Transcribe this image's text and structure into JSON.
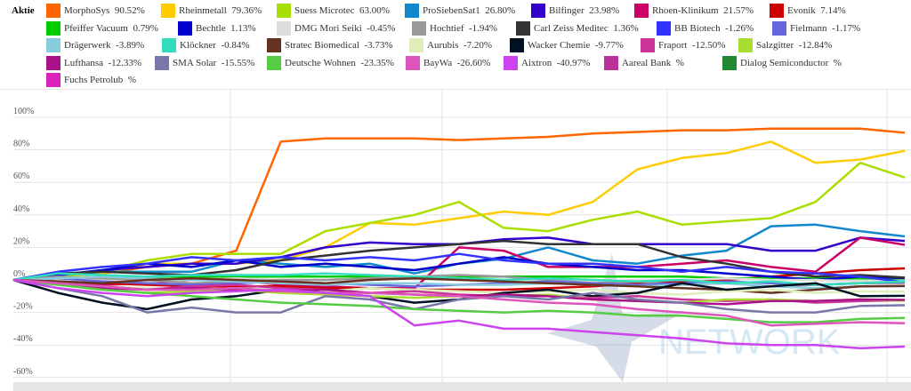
{
  "legend_title": "Aktie",
  "watermark": "NETWORK",
  "chart_data": {
    "type": "line",
    "ylim": [
      -62,
      110
    ],
    "yticks": [
      "100%",
      "80%",
      "60%",
      "40%",
      "20%",
      "0%",
      "-20%",
      "-40%",
      "-60%"
    ],
    "ytick_values": [
      100,
      80,
      60,
      40,
      20,
      0,
      -20,
      -40,
      -60
    ],
    "grid": true,
    "legend_placement": "top",
    "series": [
      {
        "name": "MorphoSys",
        "label": "90.52%",
        "color": "#ff6600",
        "values": [
          0,
          2,
          4,
          8,
          10,
          18,
          85,
          87,
          87,
          87,
          86,
          87,
          88,
          90,
          91,
          92,
          92,
          93,
          93,
          93,
          90.5
        ]
      },
      {
        "name": "Rheinmetall",
        "label": "79.36%",
        "color": "#ffcc00",
        "values": [
          0,
          2,
          4,
          10,
          10,
          10,
          12,
          20,
          35,
          34,
          38,
          42,
          40,
          48,
          68,
          75,
          78,
          85,
          72,
          74,
          79.4
        ]
      },
      {
        "name": "Suess Microtec",
        "label": "63.00%",
        "color": "#aadd00",
        "values": [
          0,
          2,
          5,
          12,
          16,
          16,
          16,
          30,
          35,
          40,
          48,
          32,
          30,
          37,
          42,
          34,
          36,
          38,
          48,
          72,
          63
        ]
      },
      {
        "name": "ProSiebenSat1",
        "label": "26.80%",
        "color": "#1188cc",
        "values": [
          0,
          3,
          5,
          5,
          5,
          12,
          10,
          8,
          10,
          4,
          10,
          13,
          20,
          12,
          10,
          15,
          18,
          33,
          34,
          30,
          26.8
        ]
      },
      {
        "name": "Bilfinger",
        "label": "23.98%",
        "color": "#3300cc",
        "values": [
          0,
          3,
          6,
          8,
          10,
          10,
          14,
          20,
          23,
          22,
          22,
          25,
          26,
          22,
          22,
          22,
          22,
          18,
          18,
          26,
          24
        ]
      },
      {
        "name": "Rhoen-Klinikum",
        "label": "21.57%",
        "color": "#cc0066",
        "values": [
          0,
          -2,
          -3,
          -2,
          0,
          0,
          -3,
          -4,
          -5,
          -5,
          20,
          18,
          8,
          8,
          8,
          10,
          12,
          8,
          5,
          26,
          21.6
        ]
      },
      {
        "name": "Evonik",
        "label": "7.14%",
        "color": "#cc0000",
        "values": [
          0,
          -1,
          -2,
          -3,
          -4,
          -4,
          -4,
          -5,
          -5,
          -6,
          -6,
          -6,
          -5,
          -4,
          -2,
          -1,
          0,
          2,
          4,
          6,
          7.1
        ]
      },
      {
        "name": "Pfeiffer Vacuum",
        "label": "0.79%",
        "color": "#00cc00",
        "values": [
          0,
          1,
          2,
          2,
          2,
          2,
          2,
          2,
          2,
          2,
          2,
          2,
          2,
          2,
          2,
          2,
          1,
          1,
          1,
          1,
          0.8
        ]
      },
      {
        "name": "Bechtle",
        "label": "1.13%",
        "color": "#0000cc",
        "values": [
          0,
          3,
          6,
          10,
          8,
          12,
          8,
          10,
          8,
          6,
          10,
          14,
          10,
          8,
          6,
          6,
          4,
          2,
          0,
          2,
          1.1
        ]
      },
      {
        "name": "DMG Mori Seiki",
        "label": "-0.45%",
        "color": "#dddddd",
        "values": [
          0,
          1,
          0,
          -1,
          0,
          1,
          0,
          0,
          1,
          2,
          1,
          0,
          0,
          -1,
          0,
          0,
          1,
          0,
          0,
          -1,
          -0.45
        ]
      },
      {
        "name": "Hochtief",
        "label": "-1.94%",
        "color": "#999999",
        "values": [
          0,
          2,
          1,
          0,
          -2,
          -1,
          0,
          0,
          1,
          2,
          3,
          2,
          0,
          -2,
          -1,
          -3,
          -2,
          -4,
          -3,
          -2,
          -1.9
        ]
      },
      {
        "name": "Carl Zeiss Meditec",
        "label": "1.36%",
        "color": "#333333",
        "values": [
          0,
          4,
          5,
          4,
          3,
          6,
          12,
          15,
          18,
          20,
          22,
          24,
          22,
          22,
          22,
          14,
          10,
          5,
          2,
          3,
          1.4
        ]
      },
      {
        "name": "BB Biotech",
        "label": "-1.26%",
        "color": "#3333ff",
        "values": [
          0,
          5,
          8,
          10,
          14,
          12,
          14,
          12,
          14,
          12,
          16,
          12,
          10,
          10,
          8,
          5,
          8,
          5,
          4,
          2,
          -1.3
        ]
      },
      {
        "name": "Fielmann",
        "label": "-1.17%",
        "color": "#6666dd",
        "values": [
          0,
          1,
          -1,
          -2,
          -3,
          -2,
          -1,
          -2,
          -3,
          -4,
          -3,
          -2,
          -1,
          -2,
          -3,
          -2,
          -1,
          -2,
          -3,
          -2,
          -1.2
        ]
      },
      {
        "name": "Drägerwerk",
        "label": "-3.89%",
        "color": "#88ccdd",
        "values": [
          0,
          1,
          2,
          1,
          0,
          -1,
          -2,
          -3,
          -2,
          -2,
          -3,
          -3,
          -2,
          -3,
          -4,
          -3,
          -2,
          -4,
          -5,
          -4,
          -3.9
        ]
      },
      {
        "name": "Klöckner",
        "label": "-0.84%",
        "color": "#33ddbb",
        "values": [
          0,
          4,
          3,
          2,
          3,
          3,
          3,
          4,
          3,
          2,
          1,
          0,
          1,
          0,
          -1,
          0,
          -2,
          -1,
          -3,
          -2,
          -0.8
        ]
      },
      {
        "name": "Stratec Biomedical",
        "label": "-3.73%",
        "color": "#663322",
        "values": [
          0,
          -1,
          -2,
          0,
          1,
          0,
          -1,
          -2,
          0,
          1,
          0,
          -1,
          -2,
          -3,
          -4,
          -5,
          -6,
          -8,
          -6,
          -4,
          -3.7
        ]
      },
      {
        "name": "Aurubis",
        "label": "-7.20%",
        "color": "#ddeebb",
        "values": [
          0,
          -2,
          -4,
          -5,
          -6,
          -5,
          -6,
          -7,
          -5,
          -6,
          -7,
          -8,
          -7,
          -6,
          -8,
          -9,
          -7,
          -6,
          -8,
          -7,
          -7.2
        ]
      },
      {
        "name": "Wacker Chemie",
        "label": "-9.77%",
        "color": "#001122",
        "values": [
          0,
          -8,
          -14,
          -18,
          -12,
          -10,
          -6,
          -8,
          -10,
          -14,
          -12,
          -8,
          -6,
          -10,
          -8,
          -2,
          -6,
          -4,
          -2,
          -10,
          -9.8
        ]
      },
      {
        "name": "Fraport",
        "label": "-12.50%",
        "color": "#cc3399",
        "values": [
          0,
          -2,
          -4,
          -6,
          -4,
          -3,
          -5,
          -6,
          -8,
          -7,
          -9,
          -10,
          -10,
          -11,
          -10,
          -12,
          -13,
          -12,
          -14,
          -13,
          -12.5
        ]
      },
      {
        "name": "Salzgitter",
        "label": "-12.84%",
        "color": "#aadd33",
        "values": [
          0,
          -3,
          -6,
          -8,
          -7,
          -6,
          -8,
          -9,
          -10,
          -11,
          -10,
          -10,
          -9,
          -12,
          -13,
          -14,
          -12,
          -12,
          -13,
          -12,
          -12.8
        ]
      },
      {
        "name": "Lufthansa",
        "label": "-12.33%",
        "color": "#aa1188",
        "values": [
          0,
          -2,
          -5,
          -6,
          -5,
          -6,
          -7,
          -6,
          -8,
          -9,
          -10,
          -9,
          -10,
          -12,
          -13,
          -14,
          -15,
          -13,
          -13,
          -12,
          -12.3
        ]
      },
      {
        "name": "SMA Solar",
        "label": "-15.55%",
        "color": "#7777aa",
        "values": [
          0,
          -5,
          -10,
          -20,
          -17,
          -20,
          -20,
          -10,
          -12,
          -18,
          -12,
          -10,
          -12,
          -8,
          -12,
          -14,
          -18,
          -20,
          -20,
          -16,
          -15.6
        ]
      },
      {
        "name": "Deutsche Wohnen",
        "label": "-23.35%",
        "color": "#55cc44",
        "values": [
          0,
          -3,
          -6,
          -8,
          -10,
          -12,
          -14,
          -15,
          -16,
          -18,
          -19,
          -20,
          -19,
          -20,
          -22,
          -22,
          -24,
          -26,
          -26,
          -24,
          -23.4
        ]
      },
      {
        "name": "BayWa",
        "label": "-26.60%",
        "color": "#dd55bb",
        "values": [
          0,
          -2,
          -4,
          -6,
          -6,
          -5,
          -7,
          -8,
          -8,
          -9,
          -10,
          -12,
          -14,
          -15,
          -18,
          -20,
          -22,
          -28,
          -27,
          -26,
          -26.6
        ]
      },
      {
        "name": "Aixtron",
        "label": "-40.97%",
        "color": "#cc44ee",
        "values": [
          0,
          -5,
          -8,
          -10,
          -8,
          -7,
          -6,
          -8,
          -10,
          -28,
          -25,
          -30,
          -30,
          -32,
          -34,
          -36,
          -39,
          -40,
          -40,
          -42,
          -41
        ]
      },
      {
        "name": "Aareal Bank",
        "label": "%",
        "color": "#bb3399",
        "values": []
      },
      {
        "name": "Dialog Semiconductor",
        "label": "%",
        "color": "#228833",
        "values": []
      },
      {
        "name": "Fuchs Petrolub",
        "label": "%",
        "color": "#dd22bb",
        "values": []
      }
    ]
  }
}
